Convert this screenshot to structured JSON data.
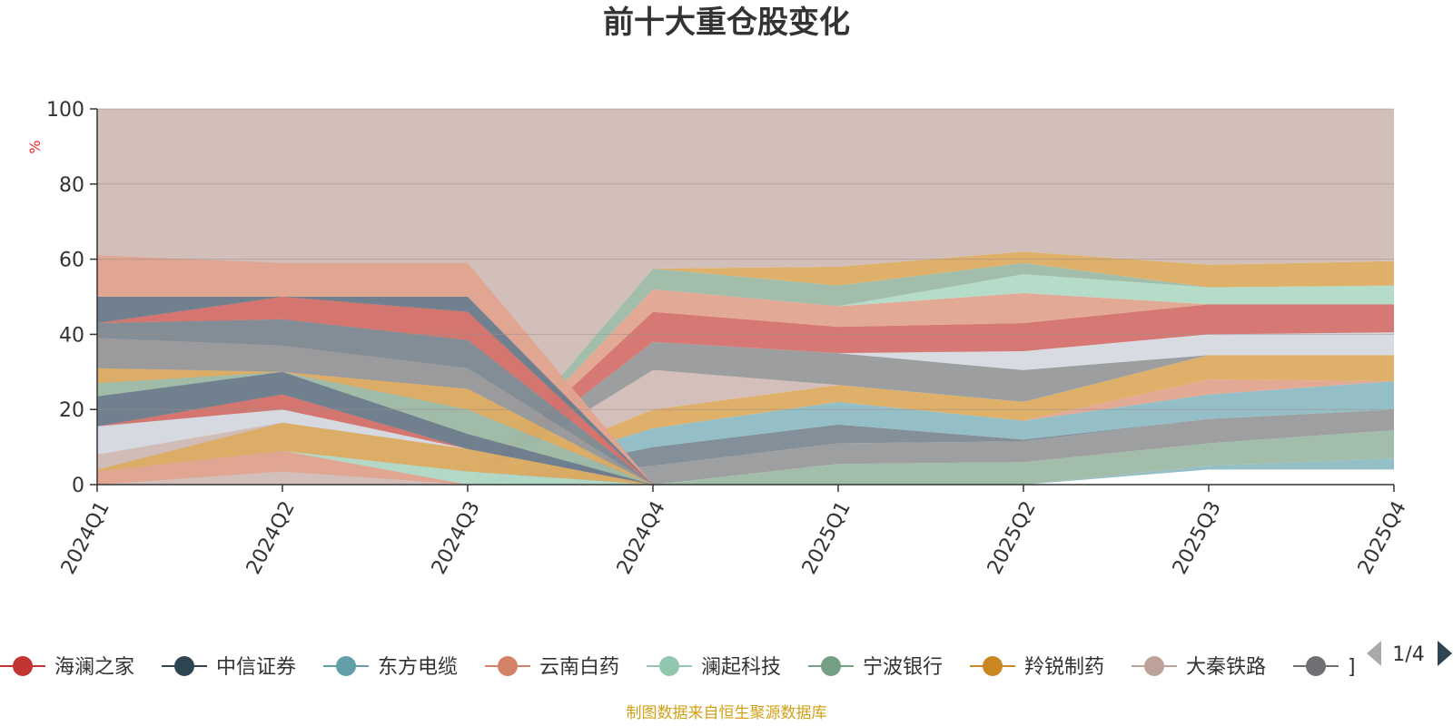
{
  "colors": {
    "axis": "#333333",
    "grid": "#9a8f8a",
    "unit": "#e8282b",
    "source": "#d4a017",
    "pager_active": "#2f4554",
    "pager_inactive": "#aaaaaa"
  },
  "chart_data": {
    "type": "area",
    "title": "前十大重仓股变化",
    "ylabel": "%",
    "ylim": [
      0,
      100
    ],
    "yticks": [
      0,
      20,
      40,
      60,
      80,
      100
    ],
    "categories": [
      "2024Q1",
      "2024Q2",
      "2024Q3",
      "2024Q4",
      "2025Q1",
      "2025Q2",
      "2025Q3",
      "2025Q4"
    ],
    "bands": [
      {
        "lower": [
          0,
          0,
          0,
          0,
          0,
          0,
          4,
          4
        ],
        "upper": [
          0,
          0,
          0,
          0,
          0,
          0,
          4,
          4
        ],
        "color": "#6b7c8c"
      },
      {
        "lower": [
          0,
          0,
          0,
          0,
          0,
          0,
          4,
          4
        ],
        "upper": [
          0,
          0,
          0,
          0,
          0,
          0,
          5,
          7
        ],
        "color": "#8fbcc3"
      },
      {
        "lower": [
          0,
          0,
          0,
          0,
          0,
          0,
          5,
          7
        ],
        "upper": [
          0,
          0,
          0,
          0,
          5.5,
          6,
          11,
          14.5
        ],
        "color": "#9dbba6"
      },
      {
        "lower": [
          0,
          0,
          0,
          0,
          5.5,
          6,
          11,
          14.5
        ],
        "upper": [
          0,
          0,
          0,
          5,
          11,
          11.5,
          17.5,
          20
        ],
        "color": "#999a9c"
      },
      {
        "lower": [
          0,
          0,
          0,
          5,
          11,
          11.5,
          17.5,
          20
        ],
        "upper": [
          0,
          0,
          0,
          10,
          16,
          12,
          17.5,
          20
        ],
        "color": "#7d8a94"
      },
      {
        "lower": [
          0,
          0,
          0,
          10,
          16,
          12,
          17.5,
          20
        ],
        "upper": [
          0,
          0,
          0,
          15,
          22,
          17,
          24,
          27.5
        ],
        "color": "#8fbcc3"
      },
      {
        "lower": [
          0,
          0,
          0,
          15,
          22,
          17,
          24,
          27.5
        ],
        "upper": [
          0,
          0,
          0,
          15,
          22,
          17,
          28,
          27.5
        ],
        "color": "#e0a48f"
      },
      {
        "lower": [
          0,
          0,
          0,
          15,
          22,
          17,
          28,
          27.5
        ],
        "upper": [
          0,
          0,
          0,
          20,
          26.5,
          22,
          34.5,
          34.5
        ],
        "color": "#dcac62"
      },
      {
        "lower": [
          0,
          0,
          0,
          20,
          26.5,
          22,
          34.5,
          34.5
        ],
        "upper": [
          0,
          0,
          0,
          30.5,
          26.5,
          22,
          34.5,
          34.5
        ],
        "color": "#d2bcb6"
      },
      {
        "lower": [
          0,
          0,
          0,
          30.5,
          26.5,
          22,
          34.5,
          34.5
        ],
        "upper": [
          0,
          0,
          0,
          38,
          35,
          30.5,
          34.5,
          34.5
        ],
        "color": "#98999b"
      },
      {
        "lower": [
          0,
          0,
          0,
          38,
          35,
          30.5,
          34.5,
          34.5
        ],
        "upper": [
          0,
          0,
          0,
          38,
          35,
          35.5,
          40,
          40.5
        ],
        "color": "#d6dae0"
      },
      {
        "lower": [
          0,
          0,
          0,
          38,
          35,
          35.5,
          40,
          40.5
        ],
        "upper": [
          0,
          0,
          0,
          46,
          42,
          43,
          48,
          48
        ],
        "color": "#d4716c"
      },
      {
        "lower": [
          0,
          0,
          0,
          46,
          42,
          43,
          48,
          48
        ],
        "upper": [
          0,
          0,
          0,
          52,
          47.5,
          51,
          48,
          48
        ],
        "color": "#e0a48f"
      },
      {
        "lower": [
          0,
          0,
          0,
          52,
          47.5,
          51,
          48,
          48
        ],
        "upper": [
          0,
          0,
          0,
          52,
          47.5,
          56,
          52.5,
          53
        ],
        "color": "#b1d9c6"
      },
      {
        "lower": [
          0,
          0,
          0,
          52,
          47.5,
          56,
          52.5,
          53
        ],
        "upper": [
          0,
          0,
          0,
          57.5,
          53,
          59,
          52.5,
          53
        ],
        "color": "#9dbba6"
      },
      {
        "lower": [
          0,
          0,
          0,
          57.5,
          53,
          59,
          52.5,
          53
        ],
        "upper": [
          0,
          0,
          0,
          57.5,
          58,
          62,
          58.5,
          59.5
        ],
        "color": "#dcac62"
      },
      {
        "lower": [
          0,
          0,
          0,
          57.5,
          58,
          62,
          58.5,
          59.5
        ],
        "upper": [
          0,
          0,
          0,
          57.5,
          58,
          62,
          58.5,
          59.5
        ],
        "color": "#e0a48f"
      },
      {
        "lower": [
          0,
          0,
          0,
          57.5,
          58,
          62,
          58.5,
          59.5
        ],
        "upper": [
          100,
          100,
          100,
          100,
          100,
          100,
          100,
          100
        ],
        "color": "#d0bcb6"
      },
      {
        "lower": [
          0,
          3.5,
          0,
          0,
          0,
          0,
          0,
          0
        ],
        "upper": [
          0,
          3.5,
          0,
          0,
          0,
          0,
          0,
          0
        ],
        "color": "#d4716c"
      },
      {
        "lower": [
          0,
          3.5,
          0,
          0,
          0,
          0,
          0,
          0
        ],
        "upper": [
          3.5,
          9,
          0,
          0,
          0,
          0,
          0,
          0
        ],
        "color": "#e0a48f"
      },
      {
        "lower": [
          3.5,
          9,
          0,
          0,
          0,
          0,
          0,
          0
        ],
        "upper": [
          3.5,
          9,
          3.5,
          0,
          0,
          0,
          0,
          0
        ],
        "color": "#b1d9c6"
      },
      {
        "lower": [
          3.5,
          9,
          3.5,
          0,
          0,
          0,
          0,
          0
        ],
        "upper": [
          4,
          16.5,
          9.5,
          0,
          0,
          0,
          0,
          0
        ],
        "color": "#dcac62"
      },
      {
        "lower": [
          4,
          16.5,
          9.5,
          0,
          0,
          0,
          0,
          0
        ],
        "upper": [
          8,
          16.5,
          9.5,
          0,
          0,
          0,
          0,
          0
        ],
        "color": "#d2bcb6"
      },
      {
        "lower": [
          8,
          16.5,
          9.5,
          0,
          0,
          0,
          0,
          0
        ],
        "upper": [
          15.5,
          20,
          9.5,
          0,
          0,
          0,
          0,
          0
        ],
        "color": "#d6dae0"
      },
      {
        "lower": [
          15.5,
          20,
          9.5,
          0,
          0,
          0,
          0,
          0
        ],
        "upper": [
          15.5,
          24,
          9.5,
          0,
          0,
          0,
          0,
          0
        ],
        "color": "#d4716c"
      },
      {
        "lower": [
          15.5,
          24,
          9.5,
          0,
          0,
          0,
          0,
          0
        ],
        "upper": [
          23.5,
          30,
          13.5,
          0,
          0,
          0,
          0,
          0
        ],
        "color": "#6b7c8c"
      },
      {
        "lower": [
          23.5,
          30,
          13.5,
          0,
          0,
          0,
          0,
          0
        ],
        "upper": [
          27,
          30,
          20,
          0,
          0,
          0,
          0,
          0
        ],
        "color": "#9dbba6"
      },
      {
        "lower": [
          27,
          30,
          20,
          0,
          0,
          0,
          0,
          0
        ],
        "upper": [
          31,
          30,
          25.5,
          0,
          0,
          0,
          0,
          0
        ],
        "color": "#dcac62"
      },
      {
        "lower": [
          31,
          30,
          25.5,
          0,
          0,
          0,
          0,
          0
        ],
        "upper": [
          39,
          37,
          31,
          0,
          0,
          0,
          0,
          0
        ],
        "color": "#98999b"
      },
      {
        "lower": [
          39,
          37,
          31,
          0,
          0,
          0,
          0,
          0
        ],
        "upper": [
          43,
          44,
          38.5,
          0,
          0,
          0,
          0,
          0
        ],
        "color": "#7d8a94"
      },
      {
        "lower": [
          43,
          44,
          38.5,
          0,
          0,
          0,
          0,
          0
        ],
        "upper": [
          43,
          50,
          46,
          0,
          0,
          0,
          0,
          0
        ],
        "color": "#d4716c"
      },
      {
        "lower": [
          43,
          50,
          46,
          0,
          0,
          0,
          0,
          0
        ],
        "upper": [
          50,
          50,
          50,
          0,
          0,
          0,
          0,
          0
        ],
        "color": "#6b7c8c"
      },
      {
        "lower": [
          50,
          50,
          50,
          0,
          0,
          0,
          0,
          0
        ],
        "upper": [
          61,
          59,
          59,
          0,
          0,
          0,
          0,
          0
        ],
        "color": "#e0a48f"
      }
    ],
    "legend": [
      {
        "name": "海澜之家",
        "color": "#c23531"
      },
      {
        "name": "中信证券",
        "color": "#2f4554"
      },
      {
        "name": "东方电缆",
        "color": "#61a0a8"
      },
      {
        "name": "云南白药",
        "color": "#d48265"
      },
      {
        "name": "澜起科技",
        "color": "#91c7ae"
      },
      {
        "name": "宁波银行",
        "color": "#749f83"
      },
      {
        "name": "羚锐制药",
        "color": "#ca8622"
      },
      {
        "name": "大秦铁路",
        "color": "#bda29a"
      },
      {
        "name": "",
        "color": "#6e7074"
      }
    ],
    "legend_partial_glyph": "]",
    "legend_page": "1/4",
    "source_note": "制图数据来自恒生聚源数据库"
  }
}
